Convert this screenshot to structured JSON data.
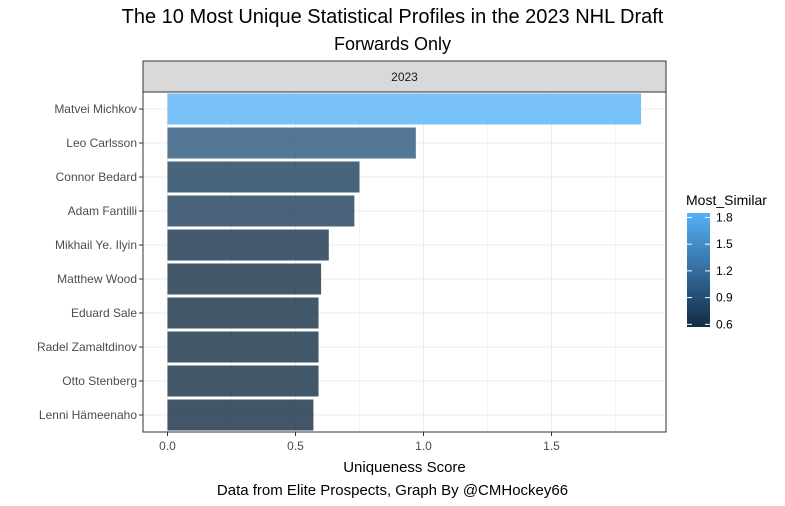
{
  "chart_data": {
    "type": "bar",
    "orientation": "horizontal",
    "title": "The 10 Most Unique Statistical Profiles in the 2023 NHL Draft",
    "subtitle": "Forwards Only",
    "caption": "Data from Elite Prospects, Graph By @CMHockey66",
    "facet_label": "2023",
    "xlabel": "Uniqueness Score",
    "ylabel": "",
    "xlim": [
      0,
      1.9
    ],
    "x_ticks": [
      "0.0",
      "0.5",
      "1.0",
      "1.5"
    ],
    "grid": true,
    "categories": [
      "Matvei Michkov",
      "Leo Carlsson",
      "Connor Bedard",
      "Adam Fantilli",
      "Mikhail Ye. Ilyin",
      "Matthew Wood",
      "Eduard Sale",
      "Radel Zamaltdinov",
      "Otto Stenberg",
      "Lenni Hämeenaho"
    ],
    "values": [
      1.85,
      0.97,
      0.75,
      0.73,
      0.63,
      0.6,
      0.59,
      0.59,
      0.59,
      0.57
    ],
    "fill_values": [
      1.85,
      0.97,
      0.75,
      0.73,
      0.63,
      0.6,
      0.59,
      0.59,
      0.59,
      0.57
    ],
    "legend": {
      "title": "Most_Similar",
      "position": "right",
      "labels": [
        "1.8",
        "1.5",
        "1.2",
        "0.9",
        "0.6"
      ],
      "label_values": [
        1.8,
        1.5,
        1.2,
        0.9,
        0.6
      ],
      "range": [
        0.57,
        1.85
      ],
      "color_low": "#132B43",
      "color_high": "#56B1F7"
    }
  }
}
